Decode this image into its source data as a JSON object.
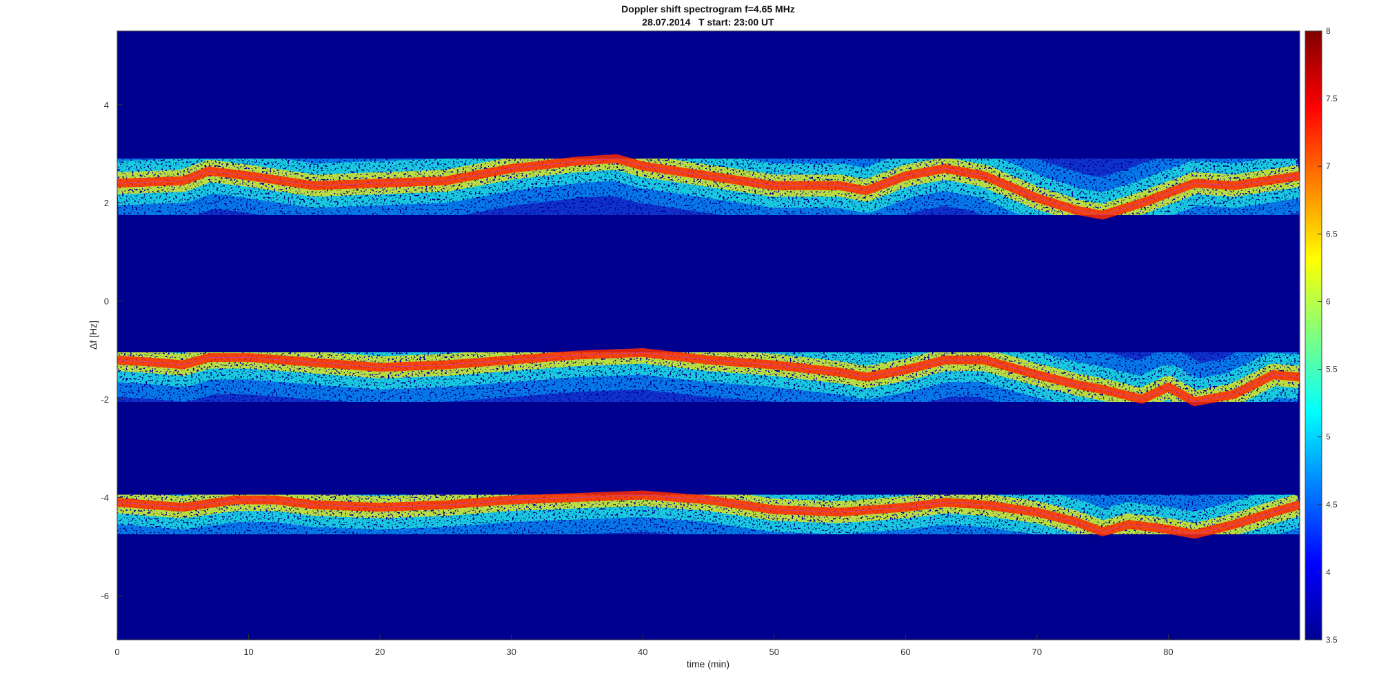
{
  "chart_data": {
    "type": "heatmap",
    "title": "Doppler shift spectrogram f=4.65 MHz",
    "subtitle": "28.07.2014   T start: 23:00 UT",
    "xlabel": "time (min)",
    "ylabel": "Δf [Hz]",
    "xlim": [
      0,
      90
    ],
    "ylim": [
      -6.9,
      5.5
    ],
    "x_ticks": [
      0,
      10,
      20,
      30,
      40,
      50,
      60,
      70,
      80
    ],
    "y_ticks": [
      4,
      2,
      0,
      -2,
      -4,
      -6
    ],
    "colorbar": {
      "colormap": "jet",
      "range": [
        3.5,
        8
      ],
      "ticks": [
        "8",
        "7.5",
        "7",
        "6.5",
        "6",
        "5.5",
        "5",
        "4.5",
        "4",
        "3.5"
      ]
    },
    "background_color": "#00008f",
    "series": [
      {
        "x": [
          0,
          5,
          7,
          10,
          15,
          20,
          25,
          30,
          35,
          38,
          40,
          45,
          50,
          55,
          57,
          60,
          63,
          66,
          70,
          73,
          75,
          78,
          82,
          85,
          90
        ],
        "y": [
          2.4,
          2.45,
          2.65,
          2.55,
          2.35,
          2.4,
          2.45,
          2.7,
          2.85,
          2.9,
          2.75,
          2.55,
          2.35,
          2.35,
          2.25,
          2.55,
          2.7,
          2.55,
          2.1,
          1.85,
          1.75,
          2.0,
          2.4,
          2.35,
          2.55
        ]
      },
      {
        "x": [
          0,
          3,
          5,
          7,
          10,
          15,
          20,
          25,
          30,
          35,
          40,
          45,
          50,
          55,
          57,
          60,
          63,
          66,
          70,
          73,
          75,
          78,
          80,
          82,
          85,
          88,
          90
        ],
        "y": [
          -1.2,
          -1.25,
          -1.3,
          -1.15,
          -1.15,
          -1.25,
          -1.35,
          -1.3,
          -1.2,
          -1.1,
          -1.05,
          -1.2,
          -1.3,
          -1.45,
          -1.55,
          -1.4,
          -1.2,
          -1.2,
          -1.5,
          -1.7,
          -1.8,
          -2.0,
          -1.75,
          -2.05,
          -1.9,
          -1.5,
          -1.55
        ]
      },
      {
        "x": [
          0,
          5,
          9,
          12,
          15,
          20,
          25,
          30,
          35,
          40,
          45,
          50,
          55,
          60,
          63,
          66,
          70,
          73,
          75,
          77,
          80,
          82,
          85,
          88,
          90
        ],
        "y": [
          -4.1,
          -4.2,
          -4.05,
          -4.05,
          -4.15,
          -4.2,
          -4.15,
          -4.05,
          -4.0,
          -3.95,
          -4.05,
          -4.25,
          -4.3,
          -4.2,
          -4.1,
          -4.15,
          -4.3,
          -4.5,
          -4.7,
          -4.55,
          -4.65,
          -4.75,
          -4.55,
          -4.3,
          -4.15
        ]
      }
    ]
  }
}
